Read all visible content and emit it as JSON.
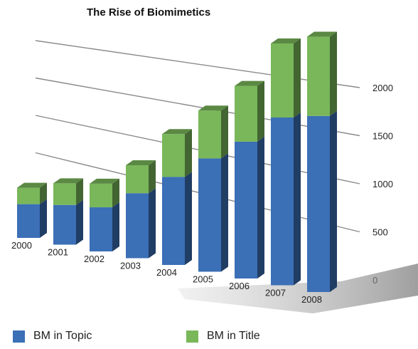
{
  "chart_data": {
    "type": "bar",
    "stacked": true,
    "style": "3d",
    "title": "The Rise of Biomimetics",
    "categories": [
      "2000",
      "2001",
      "2002",
      "2003",
      "2004",
      "2005",
      "2006",
      "2007",
      "2008"
    ],
    "series": [
      {
        "name": "BM in Topic",
        "values": [
          370,
          405,
          420,
          580,
          740,
          900,
          1030,
          1200,
          1200
        ],
        "color": "#3b6fb6"
      },
      {
        "name": "BM in Title",
        "values": [
          180,
          220,
          225,
          250,
          360,
          380,
          420,
          530,
          540
        ],
        "color": "#79b75a"
      }
    ],
    "ylim": [
      0,
      2000
    ],
    "yticks": [
      0,
      500,
      1000,
      1500,
      2000
    ],
    "grid": true,
    "legend_position": "bottom"
  }
}
